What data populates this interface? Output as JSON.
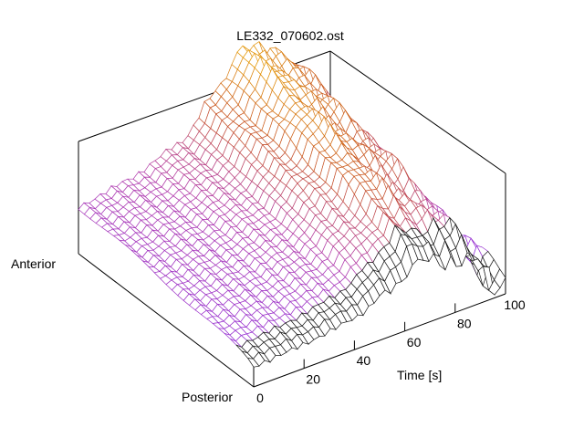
{
  "chart_data": {
    "type": "surface-3d-wireframe",
    "title": "LE332_070602.ost",
    "x_axis": {
      "label": "Time [s]",
      "range": [
        0,
        100
      ],
      "ticks": [
        0,
        20,
        40,
        60,
        80,
        100
      ]
    },
    "y_axis": {
      "start_label": "Anterior",
      "end_label": "Posterior"
    },
    "colormap": [
      "#8a2be2",
      "#b23aa8",
      "#c8541f",
      "#e69b00"
    ],
    "surface_shape": [
      {
        "time": 0,
        "level": 0.3
      },
      {
        "time": 20,
        "level": 0.36
      },
      {
        "time": 40,
        "level": 0.47
      },
      {
        "time": 55,
        "level": 0.72
      },
      {
        "time": 65,
        "level": 0.95
      },
      {
        "time": 80,
        "level": 0.8
      },
      {
        "time": 100,
        "level": 0.18
      }
    ]
  }
}
